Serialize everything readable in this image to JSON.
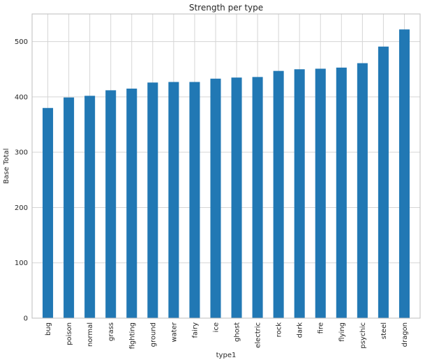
{
  "chart_data": {
    "type": "bar",
    "title": "Strength per type",
    "xlabel": "type1",
    "ylabel": "Base Total",
    "categories": [
      "bug",
      "poison",
      "normal",
      "grass",
      "fighting",
      "ground",
      "water",
      "fairy",
      "ice",
      "ghost",
      "electric",
      "rock",
      "dark",
      "fire",
      "flying",
      "psychic",
      "steel",
      "dragon"
    ],
    "values": [
      380,
      399,
      402,
      412,
      415,
      426,
      427,
      427,
      433,
      435,
      436,
      447,
      450,
      451,
      453,
      461,
      491,
      522
    ],
    "ylim": [
      0,
      550
    ],
    "yticks": [
      0,
      100,
      200,
      300,
      400,
      500
    ],
    "grid": true,
    "bar_color": "#2178b4",
    "grid_color": "#d5d5d5",
    "spine_color": "#bdbdbd",
    "background_color": "#ffffff"
  }
}
